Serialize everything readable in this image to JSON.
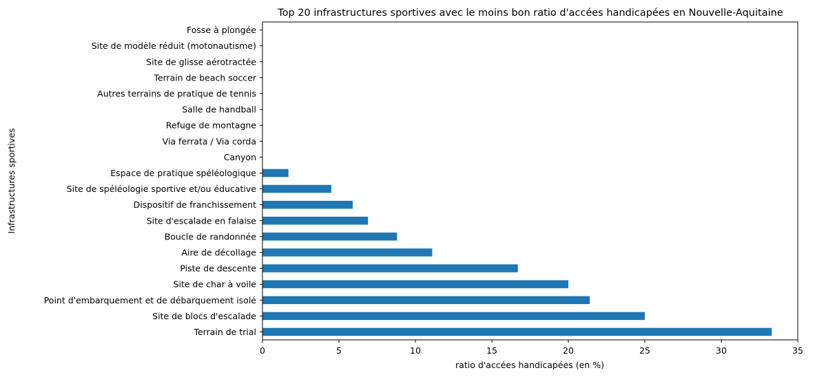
{
  "chart_data": {
    "type": "bar",
    "orientation": "horizontal",
    "title": "Top 20 infrastructures sportives avec le moins bon ratio d'accées handicapées en Nouvelle-Aquitaine",
    "xlabel": "ratio d'accées handicapées (en %)",
    "ylabel": "Infrastructures sportives",
    "xlim": [
      0,
      35
    ],
    "xticks": [
      0,
      5,
      10,
      15,
      20,
      25,
      30,
      35
    ],
    "grid": false,
    "bar_color": "#1f77b4",
    "categories": [
      "Terrain de trial",
      "Site de blocs d'escalade",
      "Point d'embarquement et de débarquement isolé",
      "Site de char à voile",
      "Piste de descente",
      "Aire de décollage",
      "Boucle de randonnée",
      "Site d'escalade en falaise",
      "Dispositif de franchissement",
      "Site de spéléologie sportive et/ou éducative",
      "Espace de pratique spéléologique",
      "Canyon",
      "Via ferrata / Via corda",
      "Refuge de montagne",
      "Salle de handball",
      "Autres terrains de pratique de tennis",
      "Terrain de beach soccer",
      "Site de glisse aérotractée",
      "Site de modèle réduit (motonautisme)",
      "Fosse à plongée"
    ],
    "values": [
      33.3,
      25.0,
      21.4,
      20.0,
      16.7,
      11.1,
      8.8,
      6.9,
      5.9,
      4.5,
      1.7,
      0,
      0,
      0,
      0,
      0,
      0,
      0,
      0,
      0
    ]
  }
}
